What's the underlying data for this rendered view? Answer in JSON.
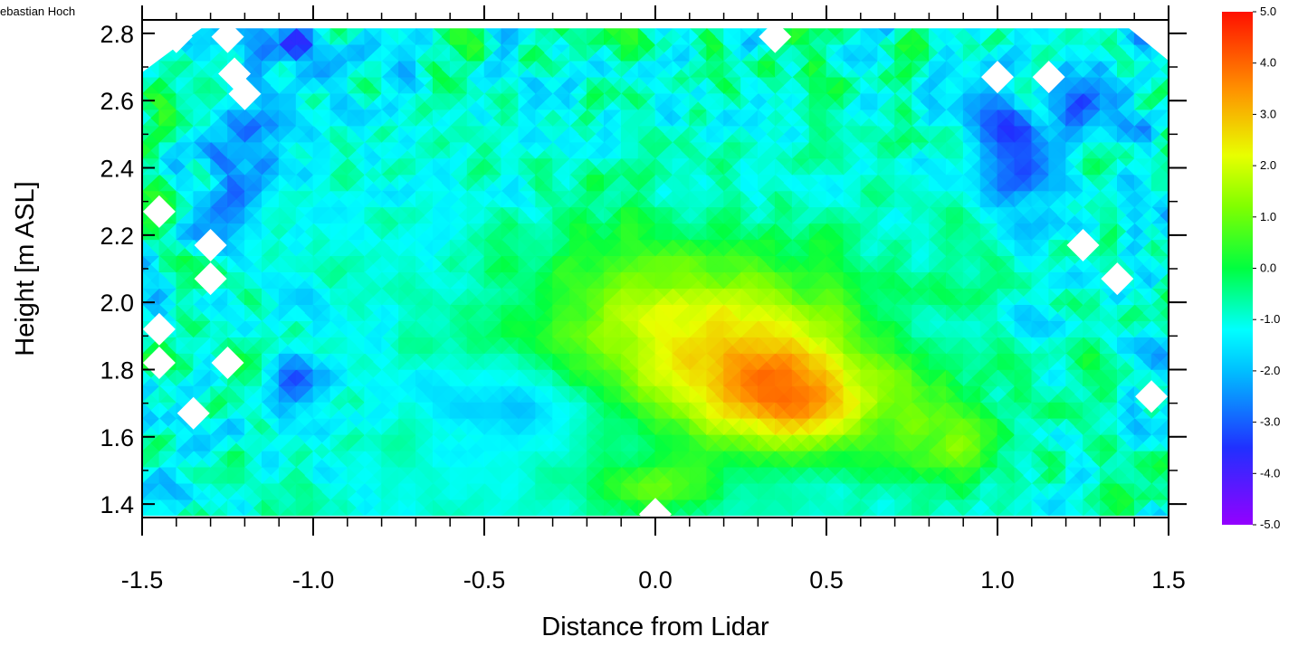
{
  "credit": "ebastian Hoch",
  "chart_data": {
    "type": "heatmap",
    "title": "",
    "xlabel": "Distance from Lidar",
    "ylabel": "Height [m ASL]",
    "xlim": [
      -1.5,
      1.5
    ],
    "ylim": [
      1.36,
      2.84
    ],
    "x_ticks": [
      -1.5,
      -1.0,
      -0.5,
      0.0,
      0.5,
      1.0,
      1.5
    ],
    "x_tick_labels": [
      "-1.5",
      "-1.0",
      "-0.5",
      "0.0",
      "0.5",
      "1.0",
      "1.5"
    ],
    "y_ticks": [
      1.4,
      1.6,
      1.8,
      2.0,
      2.2,
      2.4,
      2.6,
      2.8
    ],
    "y_tick_labels": [
      "1.4",
      "1.6",
      "1.8",
      "2.0",
      "2.2",
      "2.4",
      "2.6",
      "2.8"
    ],
    "colorbar": {
      "min": -5.0,
      "max": 5.0,
      "tick_values": [
        5.0,
        4.0,
        3.0,
        2.0,
        1.0,
        0.0,
        -1.0,
        -2.0,
        -3.0,
        -4.0,
        -5.0
      ],
      "tick_labels": [
        "5.0",
        "4.0",
        "3.0",
        "2.0",
        "1.0",
        "0.0",
        "-1.0",
        "-2.0",
        "-3.0",
        "-4.0",
        "-5.0"
      ],
      "colormap": "rainbow (violet-blue-cyan-green-yellow-red)"
    },
    "grid": false,
    "field_summary": "Field mostly between -2 and 0.5; broad green maximum (~1 to 2) near x 0.2–0.6, height 1.6–1.8; bluer minimum (~-2) near x -0.4, height 1.7; noisy cyan/blue variability near top and side edges; white diamond gaps are missing data.",
    "features": [
      {
        "x": 0.4,
        "y": 1.7,
        "value": 2.0,
        "sx": 0.18,
        "sy": 0.1
      },
      {
        "x": 0.3,
        "y": 1.85,
        "value": 1.3,
        "sx": 0.3,
        "sy": 0.18
      },
      {
        "x": 0.0,
        "y": 1.95,
        "value": 0.9,
        "sx": 0.3,
        "sy": 0.2
      },
      {
        "x": -0.4,
        "y": 1.7,
        "value": -2.2,
        "sx": 0.18,
        "sy": 0.08
      },
      {
        "x": -0.75,
        "y": 1.9,
        "value": -1.0,
        "sx": 0.15,
        "sy": 0.12
      },
      {
        "x": 0.85,
        "y": 1.6,
        "value": 1.0,
        "sx": 0.12,
        "sy": 0.1
      },
      {
        "x": 1.05,
        "y": 2.45,
        "value": -3.5,
        "sx": 0.08,
        "sy": 0.1
      },
      {
        "x": -1.05,
        "y": 2.78,
        "value": -4.0,
        "sx": 0.05,
        "sy": 0.05
      },
      {
        "x": 1.3,
        "y": 2.6,
        "value": -3.0,
        "sx": 0.08,
        "sy": 0.08
      },
      {
        "x": -1.05,
        "y": 1.75,
        "value": -3.0,
        "sx": 0.06,
        "sy": 0.06
      },
      {
        "x": 0.0,
        "y": 1.45,
        "value": 1.0,
        "sx": 0.12,
        "sy": 0.05
      },
      {
        "x": -1.2,
        "y": 2.4,
        "value": -2.5,
        "sx": 0.1,
        "sy": 0.15
      }
    ],
    "missing_data_points": [
      {
        "x": -1.4,
        "y": 2.79
      },
      {
        "x": -1.25,
        "y": 2.79
      },
      {
        "x": -1.23,
        "y": 2.68
      },
      {
        "x": -1.2,
        "y": 2.62
      },
      {
        "x": 0.35,
        "y": 2.79
      },
      {
        "x": 1.0,
        "y": 2.67
      },
      {
        "x": 1.15,
        "y": 2.67
      },
      {
        "x": -1.45,
        "y": 2.27
      },
      {
        "x": -1.3,
        "y": 2.17
      },
      {
        "x": -1.3,
        "y": 2.07
      },
      {
        "x": -1.45,
        "y": 1.92
      },
      {
        "x": -1.45,
        "y": 1.82
      },
      {
        "x": -1.25,
        "y": 1.82
      },
      {
        "x": -1.35,
        "y": 1.67
      },
      {
        "x": 1.25,
        "y": 2.17
      },
      {
        "x": 1.35,
        "y": 2.07
      },
      {
        "x": 1.45,
        "y": 1.72
      },
      {
        "x": 0.0,
        "y": 1.37
      }
    ]
  }
}
